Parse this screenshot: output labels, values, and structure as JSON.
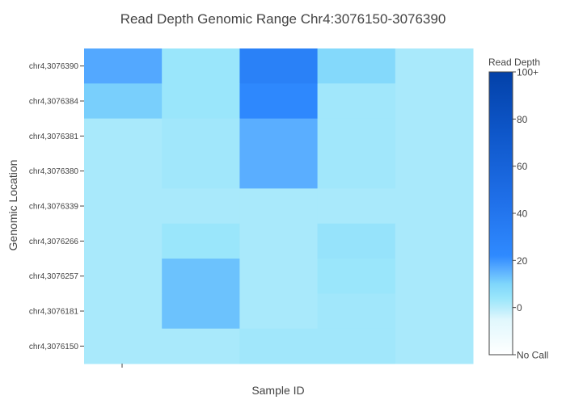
{
  "chart_data": {
    "type": "heatmap",
    "title": "Read Depth Genomic Range Chr4:3076150-3076390",
    "xlabel": "Sample ID",
    "ylabel": "Genomic Location",
    "x_ticks": [
      ""
    ],
    "y_categories": [
      "chr4,3076390",
      "chr4,3076384",
      "chr4,3076381",
      "chr4,3076380",
      "chr4,3076339",
      "chr4,3076266",
      "chr4,3076257",
      "chr4,3076181",
      "chr4,3076150"
    ],
    "n_columns": 5,
    "values": [
      [
        17,
        4,
        30,
        9,
        2
      ],
      [
        11,
        4,
        24,
        3,
        2
      ],
      [
        2,
        3,
        16,
        3,
        2
      ],
      [
        2,
        3,
        16,
        3,
        2
      ],
      [
        2,
        2,
        2,
        2,
        2
      ],
      [
        2,
        4,
        2,
        5,
        2
      ],
      [
        2,
        13,
        2,
        4,
        2
      ],
      [
        2,
        13,
        2,
        3,
        2
      ],
      [
        2,
        2,
        3,
        3,
        2
      ]
    ],
    "colorbar": {
      "title": "Read Depth",
      "zmin": -20,
      "zmax": 100,
      "tick_values": [
        100,
        80,
        60,
        40,
        20,
        0,
        -20
      ],
      "tick_labels": [
        "100+",
        "80",
        "60",
        "40",
        "20",
        "0",
        "No Call"
      ],
      "colorscale": [
        [
          0.0,
          "#ffffff"
        ],
        [
          0.125,
          "#e0f7fd"
        ],
        [
          0.166,
          "#b8ecfb"
        ],
        [
          0.2,
          "#9ae6fb"
        ],
        [
          0.25,
          "#7fd6fb"
        ],
        [
          0.3,
          "#5aaeff"
        ],
        [
          0.35,
          "#2f8aff"
        ],
        [
          0.55,
          "#1f6fe8"
        ],
        [
          0.8,
          "#0d55c7"
        ],
        [
          1.0,
          "#0341a8"
        ]
      ]
    }
  }
}
